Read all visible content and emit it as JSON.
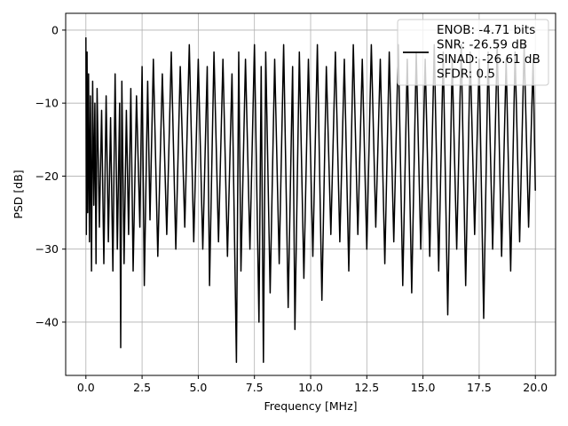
{
  "chart_data": {
    "type": "line",
    "xlabel": "Frequency [MHz]",
    "ylabel": "PSD [dB]",
    "xlim": [
      -0.9,
      20.9
    ],
    "ylim": [
      -47.3,
      2.3
    ],
    "xticks": [
      0,
      2.5,
      5,
      7.5,
      10,
      12.5,
      15,
      17.5,
      20
    ],
    "xtick_labels": [
      "0.0",
      "2.5",
      "5.0",
      "7.5",
      "10.0",
      "12.5",
      "15.0",
      "17.5",
      "20.0"
    ],
    "yticks": [
      0,
      -10,
      -20,
      -30,
      -40
    ],
    "ytick_labels": [
      "0",
      "−10",
      "−20",
      "−30",
      "−40"
    ],
    "grid": true,
    "line_color": "#000000",
    "legend": {
      "placement": "top-right",
      "lines": [
        "ENOB: -4.71 bits",
        "SNR: -26.59 dB",
        "SINAD: -26.61 dB",
        "SFDR: 0.5"
      ]
    },
    "series": [
      {
        "x": [
          0.0,
          0.02,
          0.05,
          0.08,
          0.12,
          0.16,
          0.2,
          0.25,
          0.3,
          0.35,
          0.4,
          0.45,
          0.5,
          0.6,
          0.7,
          0.8,
          0.9,
          1.0,
          1.1,
          1.2,
          1.3,
          1.4,
          1.5,
          1.55,
          1.6,
          1.7,
          1.8,
          1.9,
          2.0,
          2.1,
          2.25,
          2.4,
          2.5,
          2.6,
          2.75,
          2.85,
          3.0,
          3.2,
          3.4,
          3.6,
          3.8,
          4.0,
          4.2,
          4.4,
          4.6,
          4.8,
          5.0,
          5.2,
          5.4,
          5.5,
          5.7,
          5.9,
          6.1,
          6.3,
          6.5,
          6.7,
          6.8,
          6.9,
          7.1,
          7.3,
          7.5,
          7.7,
          7.8,
          7.9,
          8.0,
          8.2,
          8.4,
          8.6,
          8.8,
          9.0,
          9.2,
          9.3,
          9.5,
          9.7,
          9.9,
          10.1,
          10.3,
          10.5,
          10.7,
          10.9,
          11.1,
          11.3,
          11.5,
          11.7,
          11.9,
          12.1,
          12.3,
          12.5,
          12.7,
          12.9,
          13.1,
          13.3,
          13.5,
          13.7,
          13.9,
          14.1,
          14.3,
          14.5,
          14.7,
          14.9,
          15.1,
          15.3,
          15.5,
          15.7,
          15.9,
          16.1,
          16.3,
          16.5,
          16.7,
          16.9,
          17.1,
          17.3,
          17.5,
          17.7,
          17.9,
          18.1,
          18.3,
          18.5,
          18.7,
          18.9,
          19.1,
          19.3,
          19.5,
          19.7,
          19.9,
          20.0
        ],
        "y": [
          -1,
          -28,
          -3,
          -25,
          -6,
          -29,
          -9,
          -33,
          -7,
          -24,
          -10,
          -32,
          -8,
          -27,
          -11,
          -32,
          -9,
          -29,
          -12,
          -33,
          -6,
          -30,
          -10,
          -43.5,
          -7,
          -32,
          -11,
          -28,
          -8,
          -33,
          -9,
          -27,
          -5,
          -35,
          -7,
          -26,
          -4,
          -31,
          -6,
          -28,
          -3,
          -30,
          -5,
          -27,
          -2,
          -29,
          -4,
          -30,
          -5,
          -35,
          -3,
          -29,
          -4,
          -31,
          -6,
          -45.5,
          -3,
          -33,
          -4,
          -30,
          -2,
          -40,
          -5,
          -45.5,
          -3,
          -36,
          -4,
          -32,
          -2,
          -38,
          -5,
          -41,
          -3,
          -34,
          -4,
          -31,
          -2,
          -37,
          -5,
          -28,
          -3,
          -29,
          -4,
          -33,
          -2,
          -28,
          -4,
          -30,
          -2,
          -27,
          -4,
          -32,
          -3,
          -29,
          -2,
          -35,
          -4,
          -36,
          -3,
          -30,
          -4,
          -31,
          -2,
          -33,
          -3,
          -39,
          -4,
          -30,
          -2,
          -35,
          -3,
          -28,
          -4,
          -39.5,
          -3,
          -30,
          -2,
          -31,
          -4,
          -33,
          -3,
          -29,
          -2,
          -27,
          -4,
          -22
        ]
      }
    ]
  }
}
